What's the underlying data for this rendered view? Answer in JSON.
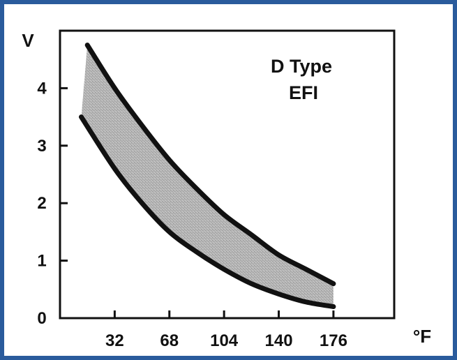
{
  "chart_data": {
    "type": "area",
    "ylabel": "V",
    "xlabel": "°F",
    "x_ticks": [
      32,
      68,
      104,
      140,
      176
    ],
    "y_ticks": [
      0,
      1,
      2,
      3,
      4
    ],
    "xlim": [
      -4,
      216
    ],
    "ylim": [
      0,
      5
    ],
    "annotations": [
      "D Type",
      "EFI"
    ],
    "series": [
      {
        "role": "upper-bound",
        "x": [
          14,
          32,
          50,
          68,
          86,
          104,
          122,
          140,
          158,
          176
        ],
        "y": [
          4.75,
          4.0,
          3.35,
          2.75,
          2.25,
          1.8,
          1.45,
          1.1,
          0.85,
          0.6
        ]
      },
      {
        "role": "lower-bound",
        "x": [
          10,
          32,
          50,
          68,
          86,
          104,
          122,
          140,
          158,
          176
        ],
        "y": [
          3.5,
          2.6,
          2.0,
          1.5,
          1.15,
          0.85,
          0.6,
          0.42,
          0.28,
          0.2
        ]
      }
    ],
    "colors": {
      "band": "#a9a9a9",
      "curve": "#111111",
      "frame": "#2a5b9c"
    },
    "grid": false
  }
}
